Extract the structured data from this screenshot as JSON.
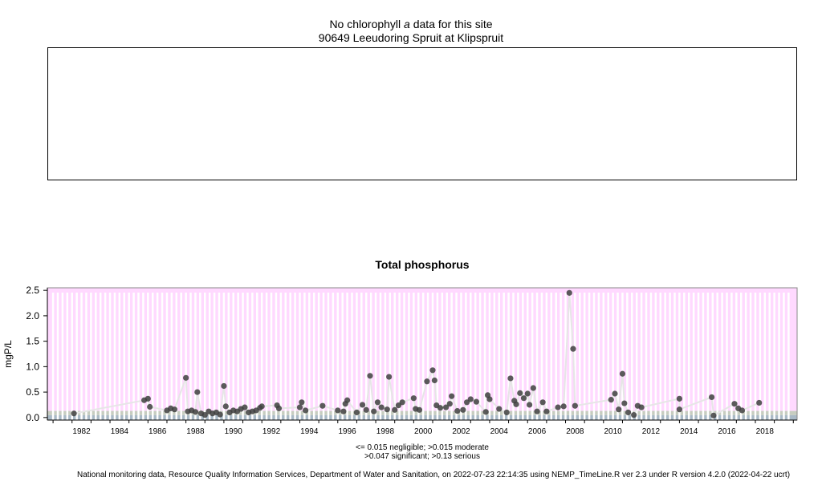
{
  "header": {
    "line1_prefix": "No chlorophyll ",
    "line1_italic": "a",
    "line1_suffix": "  data for this site",
    "site": "90649 Leeudoring Spruit at Klipspruit"
  },
  "legend": {
    "line1": "<= 0.015 negligible; >0.015 moderate",
    "line2": ">0.047 significant; >0.13 serious"
  },
  "footer": "National monitoring data, Resource Quality Information Services, Department of Water and Sanitation, on 2022-07-23 22:14:35 using NEMP_TimeLine.R ver 2.3 under R version 4.2.0 (2022-04-22 ucrt)",
  "colors": {
    "serious_band": "#ffd9ff",
    "significant_band": "#c7cdc0",
    "negligible_band": "#a9b9c6",
    "points": "#404040",
    "line": "#e6e6e6"
  },
  "chart_data": {
    "type": "scatter",
    "title": "Total phosphorus",
    "ylabel": "mgP/L",
    "xlim": [
      1980.7,
      2020.2
    ],
    "ylim": [
      -0.05,
      2.55
    ],
    "x_ticks": [
      "1982",
      "1984",
      "1986",
      "1988",
      "1990",
      "1992",
      "1994",
      "1996",
      "1998",
      "2000",
      "2002",
      "2004",
      "2006",
      "2008",
      "2010",
      "2012",
      "2014",
      "2016",
      "2018"
    ],
    "y_ticks": [
      "0.0",
      "0.5",
      "1.0",
      "1.5",
      "2.0",
      "2.5"
    ],
    "thresholds": [
      0.015,
      0.047,
      0.13
    ],
    "points": [
      [
        1982.1,
        0.08
      ],
      [
        1985.8,
        0.34
      ],
      [
        1986.0,
        0.37
      ],
      [
        1986.1,
        0.21
      ],
      [
        1987.0,
        0.14
      ],
      [
        1987.2,
        0.18
      ],
      [
        1987.4,
        0.16
      ],
      [
        1988.0,
        0.78
      ],
      [
        1988.1,
        0.12
      ],
      [
        1988.3,
        0.14
      ],
      [
        1988.5,
        0.11
      ],
      [
        1988.6,
        0.5
      ],
      [
        1988.8,
        0.08
      ],
      [
        1989.0,
        0.05
      ],
      [
        1989.2,
        0.12
      ],
      [
        1989.4,
        0.08
      ],
      [
        1989.6,
        0.1
      ],
      [
        1989.8,
        0.06
      ],
      [
        1990.0,
        0.62
      ],
      [
        1990.1,
        0.22
      ],
      [
        1990.3,
        0.1
      ],
      [
        1990.5,
        0.14
      ],
      [
        1990.7,
        0.12
      ],
      [
        1990.9,
        0.17
      ],
      [
        1991.1,
        0.2
      ],
      [
        1991.3,
        0.1
      ],
      [
        1991.5,
        0.12
      ],
      [
        1991.7,
        0.14
      ],
      [
        1991.9,
        0.19
      ],
      [
        1992.0,
        0.22
      ],
      [
        1992.8,
        0.24
      ],
      [
        1992.9,
        0.18
      ],
      [
        1994.0,
        0.2
      ],
      [
        1994.1,
        0.3
      ],
      [
        1994.3,
        0.14
      ],
      [
        1995.2,
        0.23
      ],
      [
        1996.0,
        0.14
      ],
      [
        1996.3,
        0.12
      ],
      [
        1996.4,
        0.27
      ],
      [
        1996.5,
        0.34
      ],
      [
        1997.0,
        0.1
      ],
      [
        1997.3,
        0.25
      ],
      [
        1997.5,
        0.15
      ],
      [
        1997.7,
        0.82
      ],
      [
        1997.9,
        0.12
      ],
      [
        1998.1,
        0.3
      ],
      [
        1998.3,
        0.2
      ],
      [
        1998.6,
        0.16
      ],
      [
        1998.7,
        0.8
      ],
      [
        1999.0,
        0.15
      ],
      [
        1999.2,
        0.24
      ],
      [
        1999.4,
        0.3
      ],
      [
        2000.0,
        0.38
      ],
      [
        2000.1,
        0.17
      ],
      [
        2000.3,
        0.15
      ],
      [
        2000.7,
        0.71
      ],
      [
        2001.0,
        0.93
      ],
      [
        2001.1,
        0.73
      ],
      [
        2001.2,
        0.24
      ],
      [
        2001.4,
        0.19
      ],
      [
        2001.7,
        0.2
      ],
      [
        2001.9,
        0.27
      ],
      [
        2002.0,
        0.42
      ],
      [
        2002.3,
        0.13
      ],
      [
        2002.6,
        0.15
      ],
      [
        2002.8,
        0.3
      ],
      [
        2003.0,
        0.36
      ],
      [
        2003.3,
        0.31
      ],
      [
        2003.8,
        0.11
      ],
      [
        2003.9,
        0.44
      ],
      [
        2004.0,
        0.36
      ],
      [
        2004.5,
        0.17
      ],
      [
        2004.9,
        0.1
      ],
      [
        2005.1,
        0.77
      ],
      [
        2005.3,
        0.33
      ],
      [
        2005.4,
        0.26
      ],
      [
        2005.6,
        0.48
      ],
      [
        2005.8,
        0.38
      ],
      [
        2006.0,
        0.47
      ],
      [
        2006.1,
        0.25
      ],
      [
        2006.3,
        0.58
      ],
      [
        2006.5,
        0.12
      ],
      [
        2006.8,
        0.3
      ],
      [
        2007.0,
        0.12
      ],
      [
        2007.6,
        0.2
      ],
      [
        2007.9,
        0.22
      ],
      [
        2008.2,
        2.45
      ],
      [
        2008.4,
        1.35
      ],
      [
        2008.5,
        0.23
      ],
      [
        2010.4,
        0.35
      ],
      [
        2010.6,
        0.47
      ],
      [
        2010.8,
        0.16
      ],
      [
        2011.0,
        0.86
      ],
      [
        2011.1,
        0.28
      ],
      [
        2011.3,
        0.1
      ],
      [
        2011.6,
        0.05
      ],
      [
        2011.8,
        0.23
      ],
      [
        2012.0,
        0.2
      ],
      [
        2014.0,
        0.37
      ],
      [
        2014.0,
        0.16
      ],
      [
        2015.7,
        0.4
      ],
      [
        2015.8,
        0.04
      ],
      [
        2016.9,
        0.27
      ],
      [
        2017.1,
        0.18
      ],
      [
        2017.3,
        0.14
      ],
      [
        2018.2,
        0.29
      ]
    ]
  }
}
